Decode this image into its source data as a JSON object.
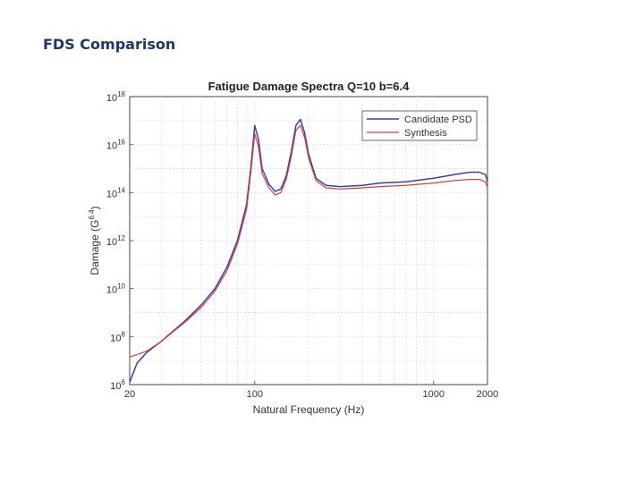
{
  "slide": {
    "title": "FDS Comparison"
  },
  "chart_data": {
    "type": "line",
    "title": "Fatigue Damage Spectra Q=10 b=6.4",
    "xlabel": "Natural Frequency (Hz)",
    "ylabel_main": "Damage (G",
    "ylabel_sup": "6.4",
    "ylabel_end": ")",
    "xscale": "log",
    "yscale": "log",
    "xlim": [
      20,
      2000
    ],
    "ylim_exp": [
      6,
      18
    ],
    "x_ticks": [
      {
        "value": 20,
        "label": "20"
      },
      {
        "value": 100,
        "label": "100"
      },
      {
        "value": 1000,
        "label": "1000"
      },
      {
        "value": 2000,
        "label": "2000"
      }
    ],
    "y_ticks": [
      {
        "exp": 6,
        "base": "10",
        "sup": "6"
      },
      {
        "exp": 8,
        "base": "10",
        "sup": "8"
      },
      {
        "exp": 10,
        "base": "10",
        "sup": "10"
      },
      {
        "exp": 12,
        "base": "10",
        "sup": "12"
      },
      {
        "exp": 14,
        "base": "10",
        "sup": "14"
      },
      {
        "exp": 16,
        "base": "10",
        "sup": "16"
      },
      {
        "exp": 18,
        "base": "10",
        "sup": "18"
      }
    ],
    "grid": true,
    "legend_position": "top-right",
    "series": [
      {
        "name": "Candidate PSD",
        "color": "#3a3fb0",
        "x": [
          20,
          22,
          25,
          30,
          40,
          50,
          60,
          70,
          80,
          90,
          95,
          100,
          105,
          110,
          120,
          130,
          140,
          150,
          160,
          170,
          180,
          190,
          200,
          220,
          250,
          300,
          400,
          500,
          700,
          1000,
          1300,
          1600,
          1800,
          1950,
          2000
        ],
        "log10_y": [
          6.1,
          6.9,
          7.35,
          7.8,
          8.6,
          9.3,
          10.0,
          10.9,
          12.0,
          13.5,
          15.0,
          16.8,
          16.2,
          15.0,
          14.35,
          14.05,
          14.15,
          14.7,
          15.7,
          16.8,
          17.05,
          16.5,
          15.6,
          14.6,
          14.3,
          14.25,
          14.3,
          14.4,
          14.45,
          14.6,
          14.75,
          14.85,
          14.85,
          14.75,
          14.45
        ]
      },
      {
        "name": "Synthesis",
        "color": "#e03a3a",
        "x": [
          20,
          22,
          25,
          30,
          40,
          50,
          60,
          70,
          80,
          90,
          95,
          100,
          105,
          110,
          120,
          130,
          140,
          150,
          160,
          170,
          180,
          190,
          200,
          220,
          250,
          300,
          400,
          500,
          700,
          1000,
          1300,
          1600,
          1800,
          1950,
          2000
        ],
        "log10_y": [
          7.15,
          7.25,
          7.4,
          7.8,
          8.55,
          9.2,
          9.9,
          10.75,
          11.85,
          13.3,
          14.8,
          16.45,
          15.9,
          14.8,
          14.2,
          13.9,
          14.0,
          14.55,
          15.5,
          16.6,
          16.8,
          16.3,
          15.45,
          14.5,
          14.2,
          14.15,
          14.2,
          14.25,
          14.3,
          14.4,
          14.5,
          14.55,
          14.55,
          14.45,
          14.2
        ]
      }
    ]
  }
}
